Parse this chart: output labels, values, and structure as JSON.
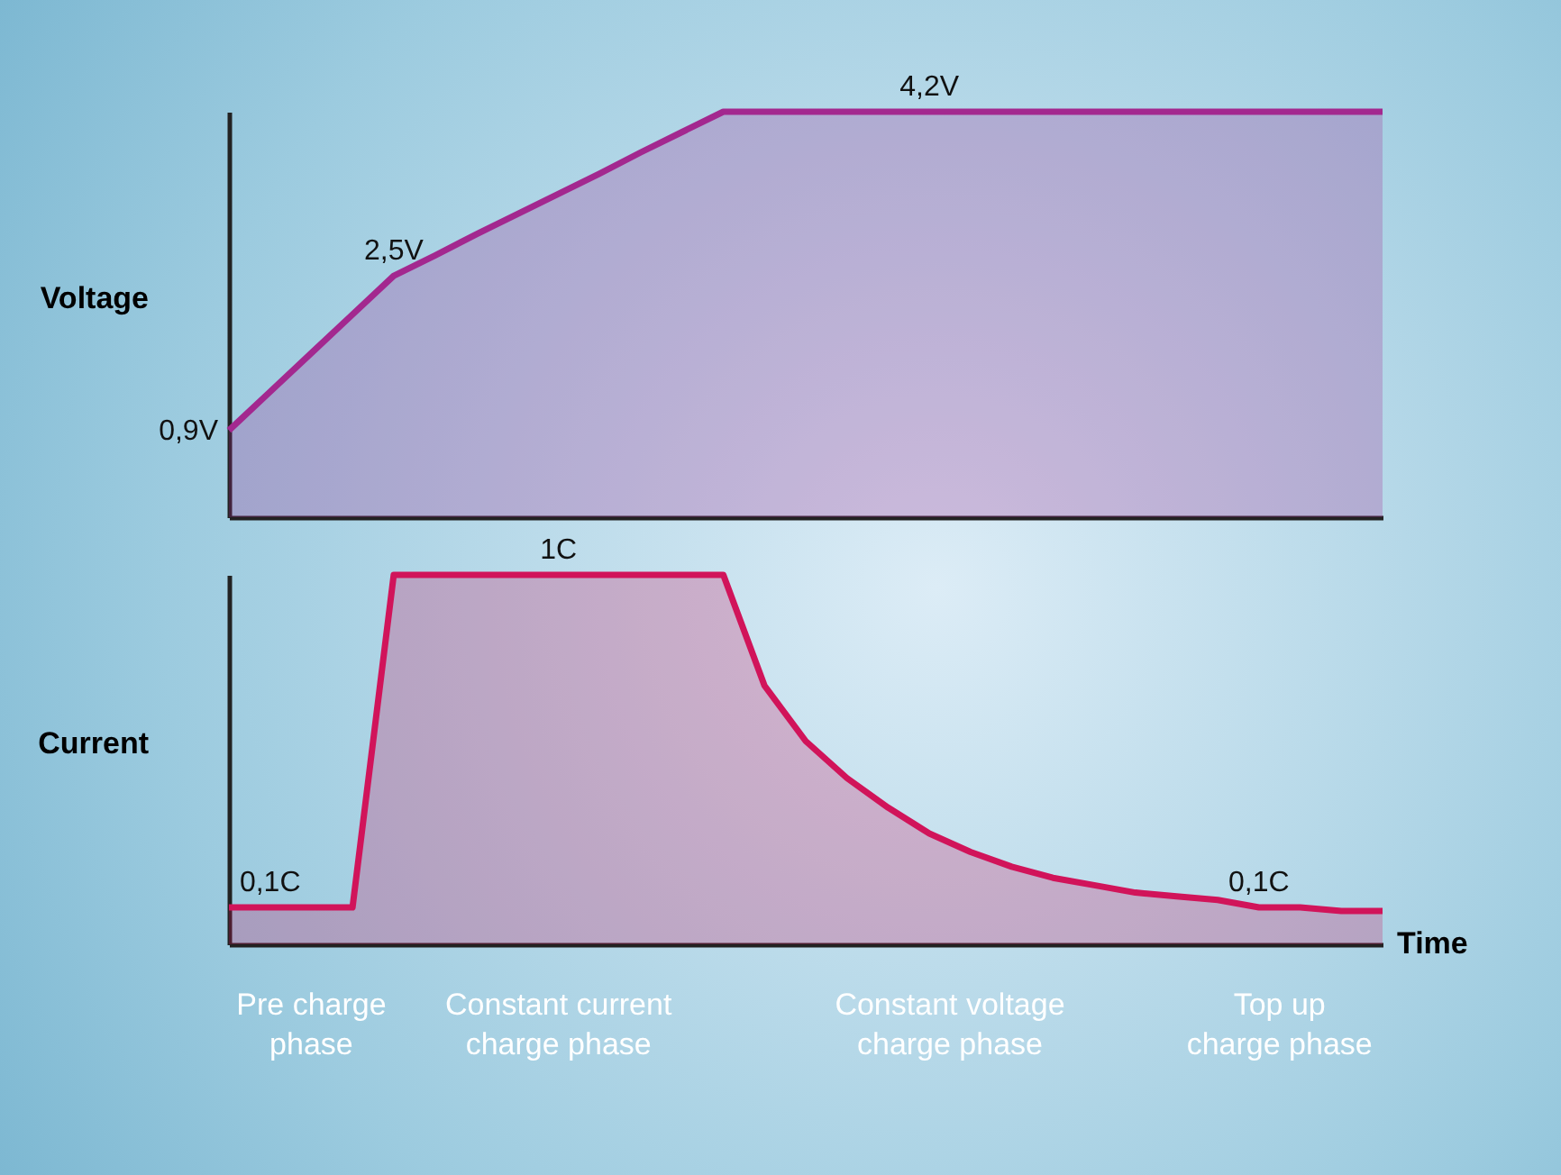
{
  "chart_data": [
    {
      "type": "area",
      "ylabel": "Voltage",
      "tick_labels": false,
      "categories": [
        null,
        null,
        null,
        null,
        null,
        null,
        null,
        null,
        null,
        null,
        null,
        null,
        null,
        null,
        null,
        null,
        null,
        null,
        null,
        null,
        null,
        null,
        null,
        null,
        null,
        null,
        null,
        null,
        null
      ],
      "series": [
        {
          "color": "#a3288f",
          "values": [
            0.9,
            1.3,
            1.7,
            2.1,
            2.5,
            2.71,
            2.93,
            3.14,
            3.35,
            3.56,
            3.78,
            3.99,
            4.2,
            4.2,
            4.2,
            4.2,
            4.2,
            4.2,
            4.2,
            4.2,
            4.2,
            4.2,
            4.2,
            4.2,
            4.2,
            4.2,
            4.2,
            4.2,
            4.2
          ],
          "value_labels": [
            "0,9V",
            null,
            null,
            null,
            "2,5V",
            null,
            null,
            null,
            null,
            null,
            null,
            null,
            null,
            null,
            null,
            null,
            null,
            "4,2V",
            null,
            null,
            null,
            null,
            null,
            null,
            null,
            null,
            null,
            null,
            null
          ]
        }
      ]
    },
    {
      "type": "area",
      "ylabel": "Current",
      "tick_labels": false,
      "xlabel": "Time",
      "categories": [
        null,
        null,
        null,
        null,
        null,
        null,
        null,
        null,
        null,
        null,
        null,
        null,
        null,
        null,
        null,
        null,
        null,
        null,
        null,
        null,
        null,
        null,
        null,
        null,
        null,
        null,
        null,
        null,
        null
      ],
      "series": [
        {
          "color": "#d1145a",
          "values": [
            0.1,
            0.1,
            0.1,
            0.1,
            1,
            1,
            1,
            1,
            1,
            1,
            1,
            1,
            1,
            0.7,
            0.55,
            0.45,
            0.37,
            0.3,
            0.25,
            0.21,
            0.18,
            0.16,
            0.14,
            0.13,
            0.12,
            0.1,
            0.1,
            0.09,
            0.09
          ],
          "value_labels": [
            null,
            "0,1C",
            null,
            null,
            null,
            null,
            null,
            null,
            "1C",
            null,
            null,
            null,
            null,
            null,
            null,
            null,
            null,
            null,
            null,
            null,
            null,
            null,
            null,
            null,
            null,
            "0,1C",
            null,
            null,
            null
          ]
        }
      ],
      "annotations": [
        "Pre charge\nphase",
        "Constant current\ncharge phase",
        "Constant voltage\ncharge phase",
        "Top up\ncharge phase"
      ]
    }
  ]
}
